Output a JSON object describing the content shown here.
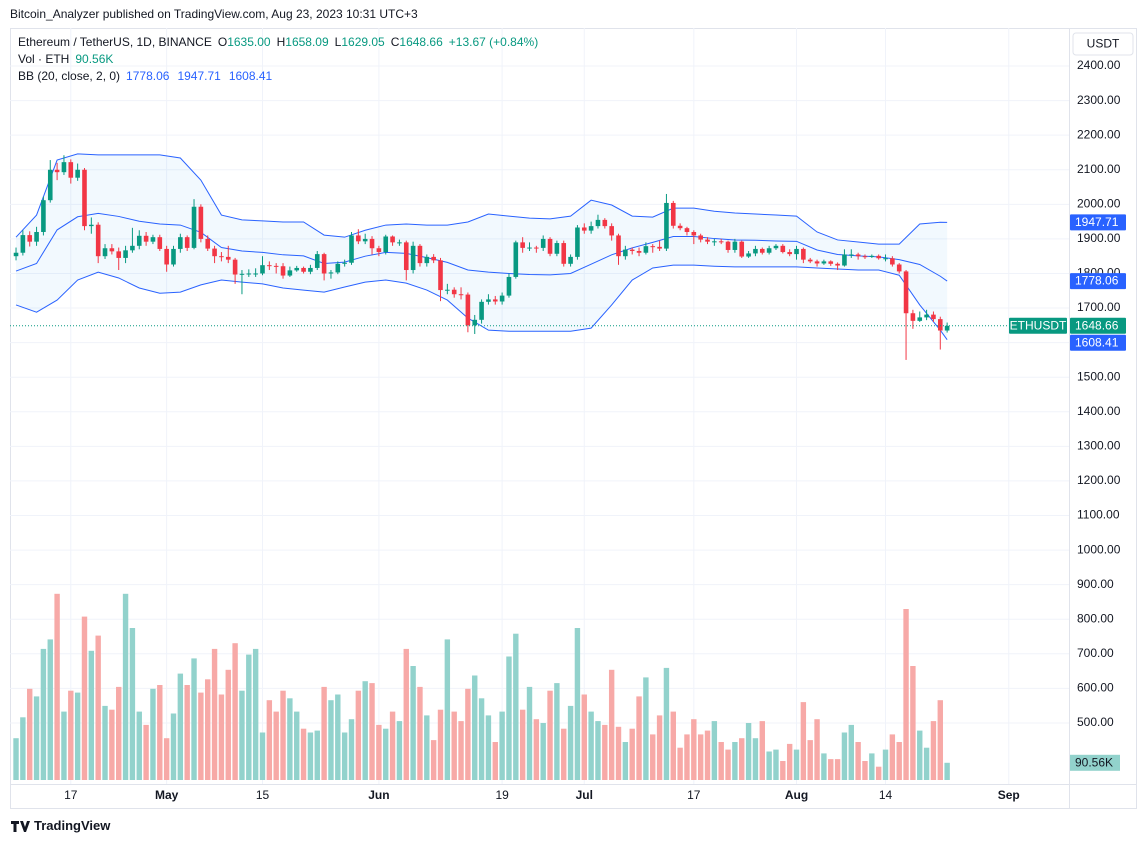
{
  "header": "Bitcoin_Analyzer published on TradingView.com, Aug 23, 2023 10:31 UTC+3",
  "footer": "TradingView",
  "chart_data": {
    "type": "candlestick",
    "legend": {
      "symbol": "Ethereum / TetherUS, 1D, BINANCE",
      "ohlc": [
        {
          "key": "O",
          "value": "1635.00"
        },
        {
          "key": "H",
          "value": "1658.09"
        },
        {
          "key": "L",
          "value": "1629.05"
        },
        {
          "key": "C",
          "value": "1648.66"
        }
      ],
      "change": "+13.67 (+0.84%)",
      "volume_title": "Vol · ETH",
      "volume_value": "90.56K",
      "bb_title": "BB (20, close, 2, 0)",
      "bb_values": [
        "1778.06",
        "1947.71",
        "1608.41"
      ]
    },
    "currency": "USDT",
    "xlim": [
      -0.88,
      153.8
    ],
    "xticks": [
      {
        "value": 8,
        "label": "17"
      },
      {
        "value": 22,
        "label": "May"
      },
      {
        "value": 36,
        "label": "15"
      },
      {
        "value": 53,
        "label": "Jun"
      },
      {
        "value": 71,
        "label": "19"
      },
      {
        "value": 83,
        "label": "Jul"
      },
      {
        "value": 99,
        "label": "17"
      },
      {
        "value": 114,
        "label": "Aug"
      },
      {
        "value": 127,
        "label": "14"
      },
      {
        "value": 145,
        "label": "Sep"
      }
    ],
    "ylim": [
      335,
      2510
    ],
    "yticks": [
      {
        "value": 2400,
        "label": "2400.00"
      },
      {
        "value": 2300,
        "label": "2300.00"
      },
      {
        "value": 2200,
        "label": "2200.00"
      },
      {
        "value": 2100,
        "label": "2100.00"
      },
      {
        "value": 2000,
        "label": "2000.00"
      },
      {
        "value": 1900,
        "label": "1900.00"
      },
      {
        "value": 1800,
        "label": "1800.00"
      },
      {
        "value": 1700,
        "label": "1700.00"
      },
      {
        "value": 1600,
        "label": "1600.00"
      },
      {
        "value": 1500,
        "label": "1500.00"
      },
      {
        "value": 1400,
        "label": "1400.00"
      },
      {
        "value": 1300,
        "label": "1300.00"
      },
      {
        "value": 1200,
        "label": "1200.00"
      },
      {
        "value": 1100,
        "label": "1100.00"
      },
      {
        "value": 1000,
        "label": "1000.00"
      },
      {
        "value": 900,
        "label": "900.00"
      },
      {
        "value": 800,
        "label": "800.00"
      },
      {
        "value": 700,
        "label": "700.00"
      },
      {
        "value": 600,
        "label": "600.00"
      },
      {
        "value": 500,
        "label": "500.00"
      }
    ],
    "grid": true,
    "up_color": "#089981",
    "down_color": "#f23645",
    "volume_up_color": "#92d2cc",
    "volume_down_color": "#f7a9a7",
    "open": [
      1850,
      1860,
      1911,
      1892,
      1920,
      2012,
      2100,
      2093,
      2122,
      2077,
      2100,
      1937,
      1941,
      1850,
      1873,
      1864,
      1845,
      1867,
      1880,
      1909,
      1892,
      1905,
      1871,
      1826,
      1871,
      1905,
      1874,
      1993,
      1900,
      1872,
      1850,
      1848,
      1840,
      1797,
      1799,
      1800,
      1800,
      1824,
      1822,
      1821,
      1794,
      1809,
      1816,
      1805,
      1816,
      1856,
      1800,
      1803,
      1828,
      1831,
      1910,
      1893,
      1900,
      1873,
      1862,
      1907,
      1890,
      1890,
      1810,
      1880,
      1830,
      1848,
      1838,
      1752,
      1753,
      1740,
      1739,
      1650,
      1666,
      1718,
      1725,
      1719,
      1736,
      1790,
      1890,
      1874,
      1875,
      1874,
      1900,
      1857,
      1888,
      1828,
      1848,
      1933,
      1924,
      1937,
      1955,
      1937,
      1910,
      1850,
      1869,
      1865,
      1860,
      1879,
      1877,
      1872,
      2004,
      1938,
      1931,
      1920,
      1910,
      1898,
      1892,
      1893,
      1892,
      1868,
      1892,
      1849,
      1858,
      1871,
      1860,
      1873,
      1880,
      1862,
      1856,
      1871,
      1840,
      1835,
      1829,
      1835,
      1828,
      1823,
      1855,
      1855,
      1850,
      1848,
      1851,
      1844,
      1844,
      1826,
      1806,
      1685,
      1663,
      1673,
      1681,
      1668,
      1635
    ],
    "high": [
      1875,
      1925,
      1922,
      1935,
      2022,
      2128,
      2120,
      2142,
      2130,
      2118,
      2105,
      1962,
      1948,
      1885,
      1885,
      1875,
      1880,
      1932,
      1925,
      1920,
      1912,
      1912,
      1880,
      1880,
      1915,
      1910,
      2015,
      2000,
      1910,
      1880,
      1862,
      1880,
      1845,
      1810,
      1812,
      1815,
      1850,
      1835,
      1830,
      1830,
      1820,
      1822,
      1820,
      1825,
      1865,
      1860,
      1810,
      1835,
      1840,
      1920,
      1928,
      1915,
      1908,
      1880,
      1912,
      1910,
      1898,
      1895,
      1892,
      1885,
      1855,
      1856,
      1845,
      1770,
      1760,
      1760,
      1745,
      1680,
      1725,
      1740,
      1735,
      1745,
      1800,
      1895,
      1905,
      1890,
      1880,
      1910,
      1905,
      1895,
      1895,
      1855,
      1940,
      1945,
      1950,
      1970,
      1960,
      1945,
      1915,
      1880,
      1875,
      1875,
      1890,
      1885,
      1895,
      2030,
      2010,
      1945,
      1935,
      1925,
      1915,
      1905,
      1900,
      1900,
      1895,
      1900,
      1895,
      1865,
      1880,
      1875,
      1880,
      1885,
      1885,
      1870,
      1880,
      1875,
      1845,
      1840,
      1840,
      1838,
      1832,
      1870,
      1870,
      1860,
      1855,
      1855,
      1855,
      1855,
      1850,
      1830,
      1810,
      1695,
      1690,
      1695,
      1690,
      1675,
      1658.09
    ],
    "low": [
      1838,
      1852,
      1878,
      1880,
      1910,
      2005,
      2070,
      2085,
      2060,
      2068,
      1925,
      1915,
      1830,
      1842,
      1855,
      1810,
      1830,
      1860,
      1870,
      1880,
      1885,
      1865,
      1805,
      1820,
      1860,
      1865,
      1870,
      1890,
      1865,
      1830,
      1835,
      1830,
      1770,
      1740,
      1790,
      1790,
      1795,
      1810,
      1800,
      1785,
      1790,
      1805,
      1800,
      1798,
      1810,
      1780,
      1785,
      1798,
      1820,
      1825,
      1885,
      1885,
      1855,
      1850,
      1855,
      1880,
      1880,
      1780,
      1800,
      1820,
      1820,
      1830,
      1720,
      1740,
      1730,
      1725,
      1630,
      1625,
      1655,
      1710,
      1710,
      1710,
      1730,
      1785,
      1860,
      1865,
      1860,
      1865,
      1850,
      1850,
      1820,
      1820,
      1840,
      1915,
      1915,
      1930,
      1930,
      1895,
      1825,
      1840,
      1855,
      1850,
      1855,
      1860,
      1865,
      1865,
      1930,
      1925,
      1910,
      1885,
      1890,
      1885,
      1880,
      1885,
      1860,
      1860,
      1845,
      1845,
      1850,
      1855,
      1855,
      1868,
      1858,
      1850,
      1840,
      1830,
      1830,
      1820,
      1825,
      1822,
      1810,
      1820,
      1845,
      1840,
      1842,
      1845,
      1840,
      1835,
      1820,
      1800,
      1550,
      1640,
      1660,
      1665,
      1660,
      1580,
      1629.05
    ],
    "close": [
      1860,
      1911,
      1892,
      1920,
      2012,
      2100,
      2093,
      2122,
      2077,
      2100,
      1937,
      1941,
      1850,
      1873,
      1864,
      1845,
      1867,
      1880,
      1909,
      1892,
      1905,
      1871,
      1826,
      1871,
      1905,
      1874,
      1993,
      1900,
      1872,
      1850,
      1848,
      1840,
      1797,
      1799,
      1800,
      1800,
      1824,
      1822,
      1821,
      1794,
      1809,
      1816,
      1805,
      1816,
      1856,
      1800,
      1803,
      1828,
      1831,
      1910,
      1893,
      1900,
      1873,
      1862,
      1907,
      1890,
      1890,
      1810,
      1880,
      1830,
      1848,
      1838,
      1752,
      1753,
      1740,
      1739,
      1650,
      1666,
      1718,
      1725,
      1719,
      1736,
      1790,
      1890,
      1874,
      1875,
      1874,
      1900,
      1857,
      1888,
      1828,
      1848,
      1933,
      1924,
      1937,
      1955,
      1937,
      1910,
      1850,
      1869,
      1865,
      1860,
      1879,
      1877,
      1872,
      2004,
      1938,
      1931,
      1920,
      1910,
      1898,
      1892,
      1893,
      1892,
      1868,
      1892,
      1849,
      1858,
      1871,
      1860,
      1873,
      1880,
      1862,
      1856,
      1871,
      1840,
      1835,
      1829,
      1835,
      1828,
      1823,
      1855,
      1855,
      1850,
      1848,
      1851,
      1844,
      1844,
      1826,
      1806,
      1685,
      1663,
      1673,
      1681,
      1668,
      1635,
      1648.66
    ],
    "volume_lim": [
      0,
      3958000
    ],
    "volume": [
      220000,
      330000,
      480000,
      440000,
      690000,
      740000,
      980000,
      360000,
      470000,
      460000,
      860000,
      680000,
      760000,
      390000,
      370000,
      490000,
      980000,
      800000,
      360000,
      290000,
      480000,
      500000,
      220000,
      350000,
      560000,
      500000,
      640000,
      460000,
      530000,
      690000,
      450000,
      580000,
      720000,
      470000,
      660000,
      690000,
      250000,
      420000,
      360000,
      470000,
      430000,
      360000,
      270000,
      250000,
      260000,
      490000,
      420000,
      450000,
      250000,
      320000,
      470000,
      520000,
      510000,
      290000,
      270000,
      360000,
      310000,
      690000,
      600000,
      490000,
      340000,
      210000,
      370000,
      740000,
      360000,
      310000,
      480000,
      550000,
      430000,
      340000,
      200000,
      360000,
      650000,
      770000,
      370000,
      490000,
      320000,
      300000,
      470000,
      510000,
      270000,
      390000,
      800000,
      450000,
      360000,
      310000,
      290000,
      580000,
      280000,
      200000,
      270000,
      440000,
      540000,
      240000,
      340000,
      590000,
      360000,
      170000,
      240000,
      320000,
      240000,
      260000,
      310000,
      200000,
      160000,
      200000,
      220000,
      300000,
      220000,
      310000,
      150000,
      160000,
      100000,
      190000,
      160000,
      410000,
      210000,
      320000,
      140000,
      110000,
      110000,
      250000,
      290000,
      200000,
      100000,
      140000,
      70000,
      160000,
      240000,
      200000,
      900000,
      600000,
      260000,
      170000,
      310000,
      420000,
      90560
    ],
    "bb": {
      "color": "#2962ff",
      "fill": "rgba(33,150,243,0.06)",
      "x": [
        0,
        3,
        6,
        9,
        12,
        15,
        18,
        21,
        24,
        27,
        30,
        33,
        36,
        39,
        42,
        45,
        48,
        51,
        54,
        57,
        60,
        63,
        66,
        69,
        72,
        75,
        78,
        81,
        84,
        87,
        90,
        93,
        96,
        99,
        102,
        105,
        108,
        111,
        114,
        117,
        120,
        123,
        126,
        129,
        132,
        135,
        136
      ],
      "upper": [
        1905,
        1969,
        2128,
        2146,
        2143,
        2143,
        2143,
        2143,
        2134,
        2070,
        1969,
        1955,
        1952,
        1949,
        1949,
        1911,
        1905,
        1925,
        1940,
        1943,
        1940,
        1940,
        1949,
        1972,
        1966,
        1960,
        1958,
        1966,
        2012,
        1998,
        1966,
        1963,
        1989,
        1989,
        1980,
        1975,
        1972,
        1969,
        1966,
        1920,
        1897,
        1891,
        1885,
        1885,
        1943,
        1948,
        1947.71
      ],
      "middle": [
        1807,
        1829,
        1926,
        1964,
        1974,
        1965,
        1951,
        1943,
        1940,
        1919,
        1875,
        1865,
        1861,
        1854,
        1851,
        1829,
        1833,
        1850,
        1861,
        1858,
        1846,
        1832,
        1810,
        1804,
        1800,
        1797,
        1796,
        1800,
        1827,
        1854,
        1874,
        1890,
        1907,
        1907,
        1901,
        1897,
        1896,
        1894,
        1893,
        1868,
        1855,
        1851,
        1848,
        1840,
        1826,
        1792,
        1778.06
      ],
      "lower": [
        1709,
        1688,
        1723,
        1781,
        1804,
        1787,
        1758,
        1743,
        1746,
        1767,
        1781,
        1775,
        1770,
        1758,
        1752,
        1746,
        1761,
        1775,
        1781,
        1772,
        1752,
        1723,
        1671,
        1636,
        1633,
        1633,
        1633,
        1633,
        1642,
        1709,
        1781,
        1816,
        1824,
        1824,
        1821,
        1819,
        1819,
        1819,
        1819,
        1816,
        1813,
        1810,
        1810,
        1795,
        1709,
        1636,
        1608.41
      ]
    },
    "price_labels": [
      {
        "value": 1947.71,
        "label": "1947.71",
        "color": "#2962ff"
      },
      {
        "value": 1778.06,
        "label": "1778.06",
        "color": "#2962ff"
      },
      {
        "value": 1648.66,
        "label": "1648.66",
        "color": "#089981",
        "tag": "ETHUSDT"
      },
      {
        "value": 1608.41,
        "label": "1608.41",
        "color": "#2962ff"
      }
    ],
    "volume_label": {
      "value": 90560,
      "label": "90.56K",
      "color": "#92d2cc"
    }
  }
}
